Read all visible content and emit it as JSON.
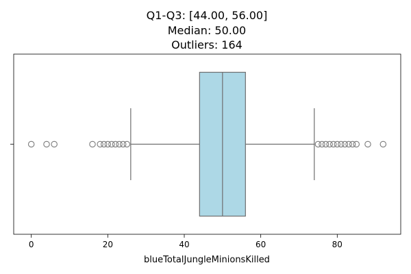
{
  "chart_data": {
    "type": "box",
    "title_lines": [
      "Q1-Q3: [44.00, 56.00]",
      "Median: 50.00",
      "Outliers: 164"
    ],
    "xlabel": "blueTotalJungleMinionsKilled",
    "ylabel": "",
    "xlim": [
      -4.6,
      96.6
    ],
    "xticks": [
      0,
      20,
      40,
      60,
      80
    ],
    "grid": false,
    "box": {
      "q1": 44,
      "median": 50,
      "q3": 56,
      "whisker_low": 26,
      "whisker_high": 74
    },
    "outliers": [
      0,
      4,
      6,
      16,
      18,
      19,
      20,
      21,
      22,
      23,
      24,
      25,
      75,
      76,
      77,
      78,
      79,
      80,
      81,
      82,
      83,
      84,
      85,
      88,
      92
    ],
    "colors": {
      "box_fill": "#add8e6",
      "line": "#6e6e6e",
      "outlier_edge": "#7a7a7a"
    }
  }
}
